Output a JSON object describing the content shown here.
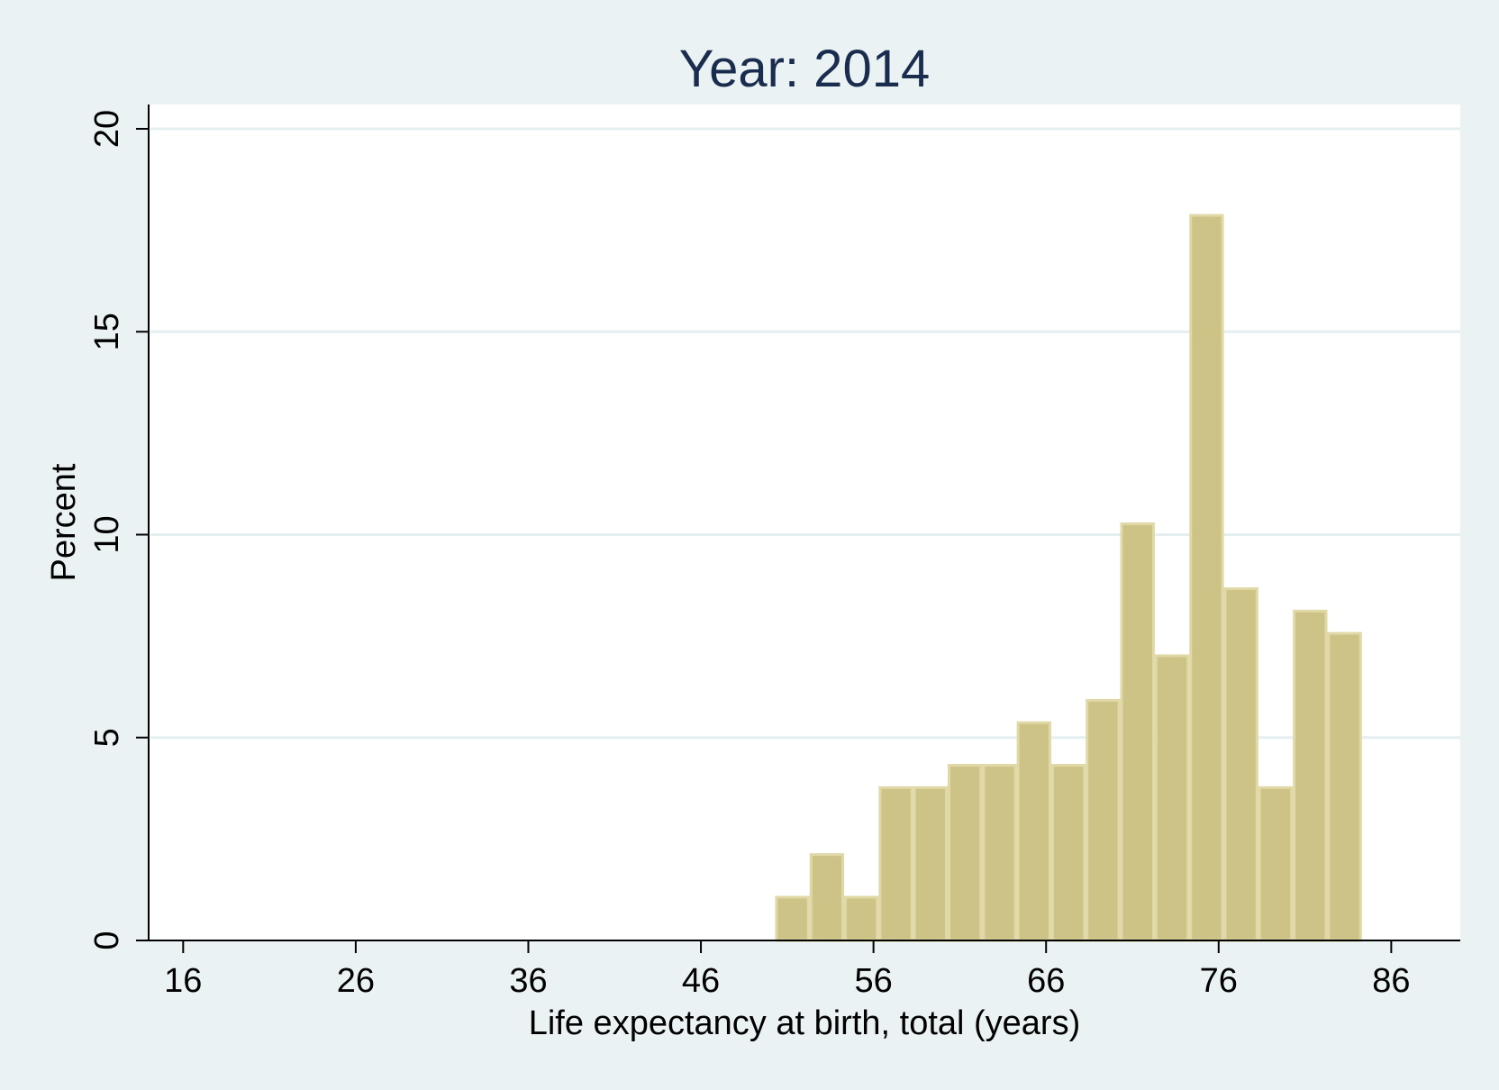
{
  "chart_data": {
    "type": "bar",
    "title": "Year: 2014",
    "xlabel": "Life expectancy at birth, total (years)",
    "ylabel": "Percent",
    "xlim": [
      14,
      90
    ],
    "ylim": [
      0,
      20.6
    ],
    "x_ticks": [
      16,
      26,
      36,
      46,
      56,
      66,
      76,
      86
    ],
    "y_ticks": [
      0,
      5,
      10,
      15,
      20
    ],
    "grid": true,
    "bin_width": 2,
    "bins": [
      {
        "start": 50.3,
        "value": 1.1
      },
      {
        "start": 52.3,
        "value": 2.15
      },
      {
        "start": 54.3,
        "value": 1.1
      },
      {
        "start": 56.3,
        "value": 3.8
      },
      {
        "start": 58.3,
        "value": 3.8
      },
      {
        "start": 60.3,
        "value": 4.35
      },
      {
        "start": 62.3,
        "value": 4.35
      },
      {
        "start": 64.3,
        "value": 5.4
      },
      {
        "start": 66.3,
        "value": 4.35
      },
      {
        "start": 68.3,
        "value": 5.95
      },
      {
        "start": 70.3,
        "value": 10.3
      },
      {
        "start": 72.3,
        "value": 7.05
      },
      {
        "start": 74.3,
        "value": 17.9
      },
      {
        "start": 76.3,
        "value": 8.7
      },
      {
        "start": 78.3,
        "value": 3.8
      },
      {
        "start": 80.3,
        "value": 8.15
      },
      {
        "start": 82.3,
        "value": 7.6
      }
    ],
    "colors": {
      "bar_fill": "#cdc386",
      "bar_stroke": "#e0d8a6",
      "plot_background": "#ffffff",
      "page_background": "#eaf2f3",
      "grid": "#e6efef",
      "title": "#1a2d4f"
    }
  }
}
